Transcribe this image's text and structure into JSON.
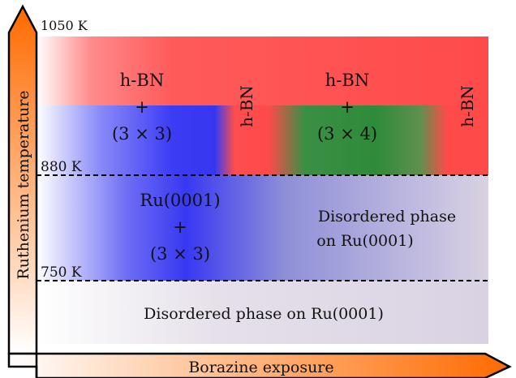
{
  "axes": {
    "y_label": "Ruthenium temperature",
    "x_label": "Borazine exposure"
  },
  "temperature_marks": {
    "top": "1050 K",
    "upper": "880 K",
    "lower": "750 K"
  },
  "regions": {
    "hbn_3x3": {
      "line1": "h-BN",
      "line2": "+",
      "line3": "(3 × 3)"
    },
    "hbn_mid_vertical": "h-BN",
    "hbn_3x4": {
      "line1": "h-BN",
      "line2": "+",
      "line3": "(3 × 4)"
    },
    "hbn_right_vertical": "h-BN",
    "ru_3x3": {
      "line1": "Ru(0001)",
      "line2": "+",
      "line3": "(3 × 3)"
    },
    "disordered_mid": {
      "line1": "Disordered phase",
      "line2": "on Ru(0001)"
    },
    "disordered_bottom": "Disordered phase on Ru(0001)"
  },
  "colors": {
    "hbn_red": "#ff4c4c",
    "phase_3x3_blue": "#3a3af5",
    "phase_3x4_green": "#2e8b3a",
    "disordered_lavender": "#d9d2e3",
    "axis_orange": "#ff6a00"
  }
}
